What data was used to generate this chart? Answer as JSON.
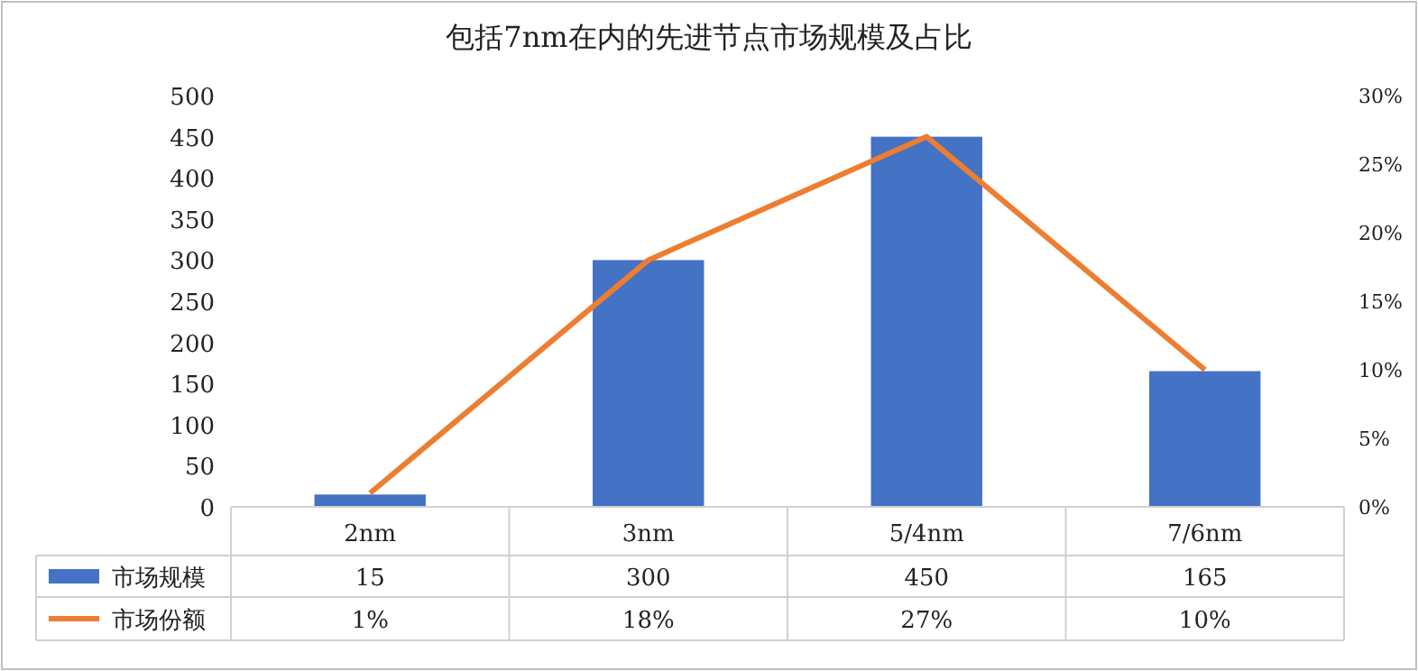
{
  "chart_data": {
    "type": "bar",
    "title": "包括7nm在内的先进节点市场规模及占比",
    "categories": [
      "2nm",
      "3nm",
      "5/4nm",
      "7/6nm"
    ],
    "series": [
      {
        "name": "市场规模",
        "color": "#4472c4",
        "values": [
          15,
          300,
          450,
          165
        ],
        "value_labels": [
          "15",
          "300",
          "450",
          "165"
        ]
      },
      {
        "name": "市场份额",
        "type": "line",
        "axis": "y2",
        "color": "#ed7d31",
        "values": [
          1,
          18,
          27,
          10
        ],
        "value_labels": [
          "1%",
          "18%",
          "27%",
          "10%"
        ]
      }
    ],
    "ylim": [
      0,
      500
    ],
    "yticks": [
      0,
      50,
      100,
      150,
      200,
      250,
      300,
      350,
      400,
      450,
      500
    ],
    "y2lim": [
      0,
      30
    ],
    "y2ticks": [
      {
        "value": 0,
        "label": "0%"
      },
      {
        "value": 5,
        "label": "5%"
      },
      {
        "value": 10,
        "label": "10%"
      },
      {
        "value": 15,
        "label": "15%"
      },
      {
        "value": 20,
        "label": "20%"
      },
      {
        "value": 25,
        "label": "25%"
      },
      {
        "value": 30,
        "label": "30%"
      }
    ],
    "legend": "bottom",
    "marker": "none"
  }
}
